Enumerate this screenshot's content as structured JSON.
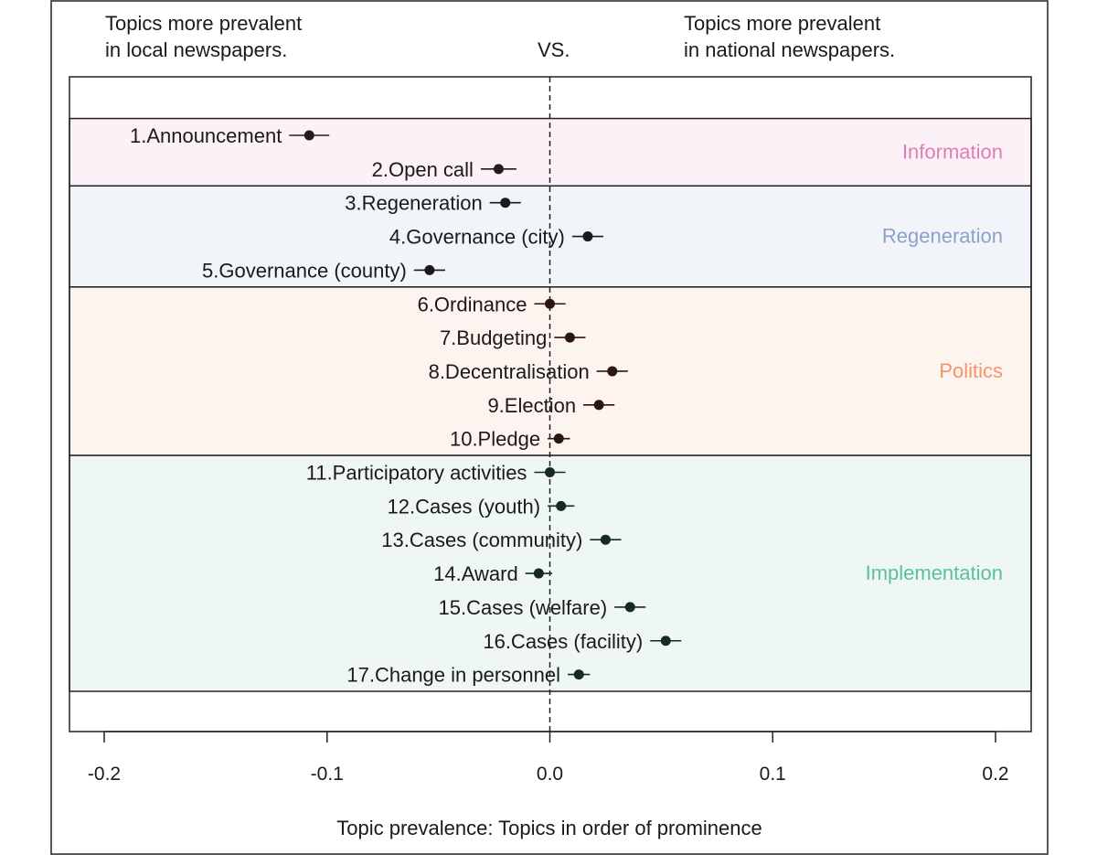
{
  "header": {
    "left_line1": "Topics more prevalent",
    "left_line2": "in local newspapers.",
    "center": "VS.",
    "right_line1": "Topics more prevalent",
    "right_line2": "in national newspapers."
  },
  "chart_data": {
    "type": "scatter",
    "xlabel": "Topic prevalence: Topics in order of prominence",
    "ylabel": "",
    "xlim": [
      -0.2,
      0.2
    ],
    "xticks": [
      -0.2,
      -0.1,
      0.0,
      0.1,
      0.2
    ],
    "xtick_labels": [
      "-0.2",
      "-0.1",
      "0.0",
      "0.1",
      "0.2"
    ],
    "grid": false,
    "reference_line": 0.0,
    "groups": [
      {
        "name": "Information",
        "color": "#e07cb4",
        "fill": "#fcf1f6",
        "rows": [
          1,
          2
        ]
      },
      {
        "name": "Regeneration",
        "color": "#8da0cb",
        "fill": "#f1f4f9",
        "rows": [
          3,
          5
        ]
      },
      {
        "name": "Politics",
        "color": "#f3946e",
        "fill": "#fdf3ef",
        "rows": [
          6,
          10
        ]
      },
      {
        "name": "Implementation",
        "color": "#5dbf9b",
        "fill": "#eef7f3",
        "rows": [
          11,
          17
        ]
      }
    ],
    "topics": [
      {
        "label": "1.Announcement",
        "estimate": -0.108,
        "lower": -0.117,
        "upper": -0.099,
        "color": "#2b1a1a"
      },
      {
        "label": "2.Open call",
        "estimate": -0.023,
        "lower": -0.031,
        "upper": -0.015,
        "color": "#2b1a1a"
      },
      {
        "label": "3.Regeneration",
        "estimate": -0.02,
        "lower": -0.027,
        "upper": -0.013,
        "color": "#1a1a1a"
      },
      {
        "label": "4.Governance (city)",
        "estimate": 0.017,
        "lower": 0.01,
        "upper": 0.024,
        "color": "#1a1a1a"
      },
      {
        "label": "5.Governance (county)",
        "estimate": -0.054,
        "lower": -0.061,
        "upper": -0.047,
        "color": "#1a1a1a"
      },
      {
        "label": "6.Ordinance",
        "estimate": 0.0,
        "lower": -0.007,
        "upper": 0.007,
        "color": "#2b1515"
      },
      {
        "label": "7.Budgeting",
        "estimate": 0.009,
        "lower": 0.002,
        "upper": 0.016,
        "color": "#2b1515"
      },
      {
        "label": "8.Decentralisation",
        "estimate": 0.028,
        "lower": 0.021,
        "upper": 0.035,
        "color": "#2b1515"
      },
      {
        "label": "9.Election",
        "estimate": 0.022,
        "lower": 0.015,
        "upper": 0.029,
        "color": "#2b1515"
      },
      {
        "label": "10.Pledge",
        "estimate": 0.004,
        "lower": -0.001,
        "upper": 0.009,
        "color": "#2b1515"
      },
      {
        "label": "11.Participatory activities",
        "estimate": 0.0,
        "lower": -0.007,
        "upper": 0.007,
        "color": "#142a22"
      },
      {
        "label": "12.Cases (youth)",
        "estimate": 0.005,
        "lower": -0.001,
        "upper": 0.011,
        "color": "#142a22"
      },
      {
        "label": "13.Cases (community)",
        "estimate": 0.025,
        "lower": 0.018,
        "upper": 0.032,
        "color": "#142a22"
      },
      {
        "label": "14.Award",
        "estimate": -0.005,
        "lower": -0.011,
        "upper": 0.001,
        "color": "#142a22"
      },
      {
        "label": "15.Cases (welfare)",
        "estimate": 0.036,
        "lower": 0.029,
        "upper": 0.043,
        "color": "#142a22"
      },
      {
        "label": "16.Cases (facility)",
        "estimate": 0.052,
        "lower": 0.045,
        "upper": 0.059,
        "color": "#142a22"
      },
      {
        "label": "17.Change in personnel",
        "estimate": 0.013,
        "lower": 0.008,
        "upper": 0.018,
        "color": "#142a22"
      }
    ]
  }
}
